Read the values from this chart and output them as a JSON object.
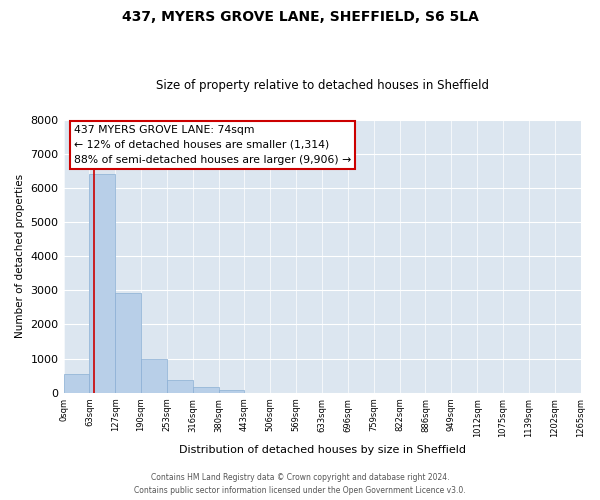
{
  "title": "437, MYERS GROVE LANE, SHEFFIELD, S6 5LA",
  "subtitle": "Size of property relative to detached houses in Sheffield",
  "xlabel": "Distribution of detached houses by size in Sheffield",
  "ylabel": "Number of detached properties",
  "bar_values": [
    560,
    6400,
    2930,
    980,
    380,
    160,
    80,
    0,
    0,
    0,
    0,
    0,
    0,
    0,
    0,
    0,
    0,
    0,
    0,
    0
  ],
  "bin_labels": [
    "0sqm",
    "63sqm",
    "127sqm",
    "190sqm",
    "253sqm",
    "316sqm",
    "380sqm",
    "443sqm",
    "506sqm",
    "569sqm",
    "633sqm",
    "696sqm",
    "759sqm",
    "822sqm",
    "886sqm",
    "949sqm",
    "1012sqm",
    "1075sqm",
    "1139sqm",
    "1202sqm",
    "1265sqm"
  ],
  "bar_color": "#b8cfe8",
  "bar_edge_color": "#8aafd4",
  "vline_x": 1.17,
  "vline_color": "#cc0000",
  "ylim": [
    0,
    8000
  ],
  "yticks": [
    0,
    1000,
    2000,
    3000,
    4000,
    5000,
    6000,
    7000,
    8000
  ],
  "annotation_title": "437 MYERS GROVE LANE: 74sqm",
  "annotation_line1": "← 12% of detached houses are smaller (1,314)",
  "annotation_line2": "88% of semi-detached houses are larger (9,906) →",
  "footer_line1": "Contains HM Land Registry data © Crown copyright and database right 2024.",
  "footer_line2": "Contains public sector information licensed under the Open Government Licence v3.0.",
  "background_color": "#ffffff",
  "plot_bg_color": "#dce6f0"
}
